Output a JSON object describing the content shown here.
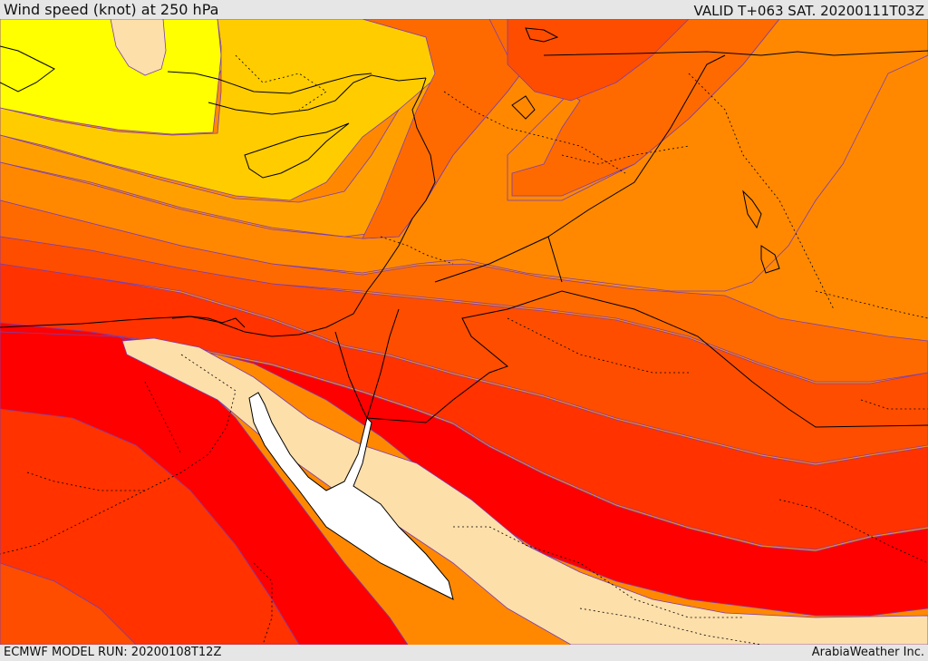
{
  "header": {
    "title": "Wind speed (knot) at 250 hPa",
    "valid_time": "VALID T+063 SAT. 20200111T03Z"
  },
  "footer": {
    "model_run": "ECMWF MODEL RUN: 20200108T12Z",
    "credit": "ArabiaWeather Inc."
  },
  "map": {
    "field": "wind-speed-250hpa",
    "palette": {
      "sea_white": "#ffffff",
      "beige": "#fddfaa",
      "yellow": "#ffff00",
      "light_yellow": "#ffe000",
      "gold": "#ffcc00",
      "amber": "#ffb000",
      "orange_light": "#ffa000",
      "orange": "#ff8800",
      "orange_dark": "#ff6a00",
      "red_orange": "#ff4d00",
      "red_dark_orange": "#ff3200",
      "red": "#ff0000",
      "contour_line": "#7a3fb0",
      "border_line": "#000000"
    }
  }
}
